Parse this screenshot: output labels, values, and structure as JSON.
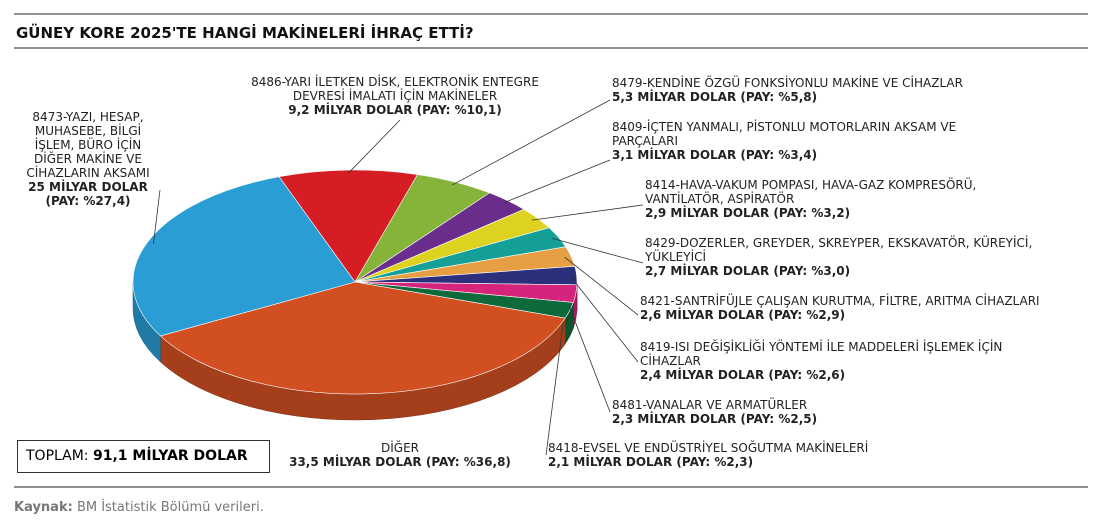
{
  "chart_data": {
    "type": "pie",
    "title": "GÜNEY KORE 2025'TE HANGİ MAKİNELERİ İHRAÇ ETTİ?",
    "categories": [
      "8486-YARI İLETKEN DİSK, ELEKTRONİK ENTEGRE DEVRESİ İMALATI İÇİN MAKİNELER",
      "8479-KENDİNE ÖZGÜ FONKSİYONLU MAKİNE VE CİHAZLAR",
      "8409-İÇTEN YANMALI, PİSTONLU MOTORLARIN AKSAM VE PARÇALARI",
      "8414-HAVA-VAKUM POMPASI, HAVA-GAZ KOMPRESÖRÜ, VANTİLATÖR, ASPİRATÖR",
      "8429-DOZERLER, GREYDER, SKREYPER, EKSKAVATÖR, KÜREYİCİ, YÜKLEYİCİ",
      "8421-SANTRİFÜJLE ÇALIŞAN KURUTMA, FİLTRE, ARITMA CİHAZLARI",
      "8419-ISI DEĞİŞİKLİĞİ YÖNTEMİ İLE MADDELERİ İŞLEMEK İÇİN CİHAZLAR",
      "8481-VANALAR VE ARMATÜRLER",
      "8418-EVSEL VE ENDÜSTRİYEL SOĞUTMA MAKİNELERİ",
      "DİĞER",
      "8473-YAZI, HESAP, MUHASEBE, BİLGİ İŞLEM, BÜRO İÇİN DİĞER MAKİNE VE CİHAZLARIN AKSAMI"
    ],
    "values": [
      9.2,
      5.3,
      3.1,
      2.9,
      2.7,
      2.6,
      2.4,
      2.3,
      2.1,
      33.5,
      25
    ],
    "value_labels": [
      "9,2 MİLYAR DOLAR",
      "5,3 MİLYAR DOLAR",
      "3,1 MİLYAR DOLAR",
      "2,9 MİLYAR DOLAR",
      "2,7 MİLYAR DOLAR",
      "2,6 MİLYAR DOLAR",
      "2,4 MİLYAR DOLAR",
      "2,3 MİLYAR DOLAR",
      "2,1 MİLYAR DOLAR",
      "33,5 MİLYAR DOLAR",
      "25 MİLYAR DOLAR"
    ],
    "shares": [
      10.1,
      5.8,
      3.4,
      3.2,
      3.0,
      2.9,
      2.6,
      2.5,
      2.3,
      36.8,
      27.4
    ],
    "share_labels": [
      "(PAY: %10,1)",
      "(PAY: %5,8)",
      "(PAY: %3,4)",
      "(PAY: %3,2)",
      "(PAY: %3,0)",
      "(PAY: %2,9)",
      "(PAY: %2,6)",
      "(PAY: %2,5)",
      "(PAY: %2,3)",
      "(PAY: %36,8)",
      "(PAY: %27,4)"
    ],
    "colors": [
      "#d71d24",
      "#86b43a",
      "#6a2d8c",
      "#ddd21f",
      "#15a097",
      "#e6a043",
      "#2b2f7c",
      "#d4247c",
      "#0f6a3b",
      "#d24f22",
      "#2a9dd4"
    ],
    "total_label": "TOPLAM:",
    "total": "91,1 MİLYAR DOLAR",
    "source_label": "Kaynak:",
    "source": "BM İstatistik Bölümü verileri."
  }
}
